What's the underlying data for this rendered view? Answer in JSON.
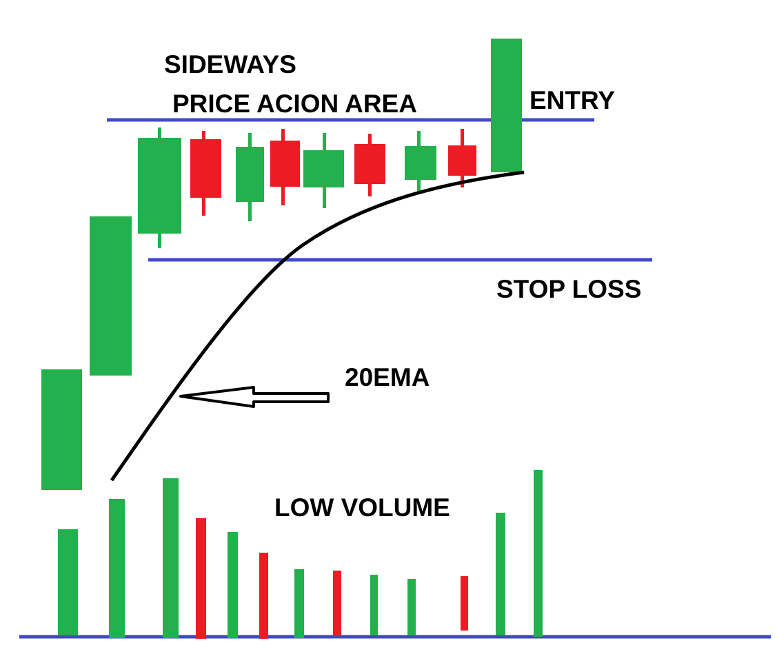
{
  "labels": {
    "sideways": "SIDEWAYS",
    "area": "PRICE ACION AREA",
    "entry": "ENTRY",
    "stop_loss": "STOP LOSS",
    "ema": "20EMA",
    "volume": "LOW VOLUME"
  }
}
